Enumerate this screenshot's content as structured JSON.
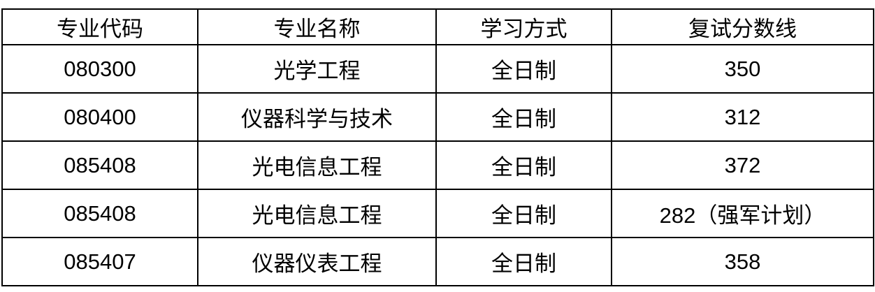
{
  "headers": [
    "专业代码",
    "专业名称",
    "学习方式",
    "复试分数线"
  ],
  "rows": [
    {
      "code": "080300",
      "name": "光学工程",
      "mode": "全日制",
      "score": "350"
    },
    {
      "code": "080400",
      "name": "仪器科学与技术",
      "mode": "全日制",
      "score": "312"
    },
    {
      "code": "085408",
      "name": "光电信息工程",
      "mode": "全日制",
      "score": "372"
    },
    {
      "code": "085408",
      "name": "光电信息工程",
      "mode": "全日制",
      "score": "282（强军计划）"
    },
    {
      "code": "085407",
      "name": "仪器仪表工程",
      "mode": "全日制",
      "score": "358"
    }
  ]
}
